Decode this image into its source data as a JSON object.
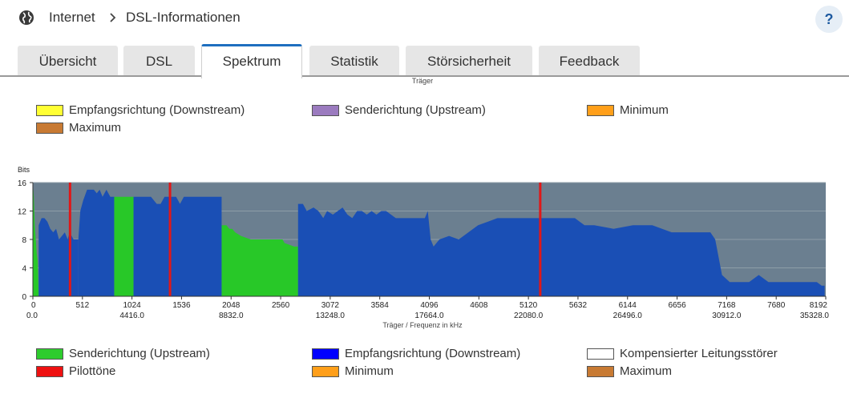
{
  "header": {
    "breadcrumb_root": "Internet",
    "breadcrumb_page": "DSL-Informationen",
    "help_label": "?"
  },
  "tabs": [
    {
      "label": "Übersicht",
      "active": false
    },
    {
      "label": "DSL",
      "active": false
    },
    {
      "label": "Spektrum",
      "active": true
    },
    {
      "label": "Statistik",
      "active": false
    },
    {
      "label": "Störsicherheit",
      "active": false
    },
    {
      "label": "Feedback",
      "active": false
    }
  ],
  "top_axis_label": "Träger",
  "legend_top": [
    {
      "label": "Empfangsrichtung (Downstream)",
      "color": "#ffff33"
    },
    {
      "label": "Senderichtung (Upstream)",
      "color": "#9b7bbf"
    },
    {
      "label": "Minimum",
      "color": "#ff9f1a"
    },
    {
      "label": "Maximum",
      "color": "#c87a33"
    }
  ],
  "legend_bottom": [
    {
      "label": "Senderichtung (Upstream)",
      "color": "#2ecc2e"
    },
    {
      "label": "Empfangsrichtung (Downstream)",
      "color": "#0000ff"
    },
    {
      "label": "Kompensierter Leitungsstörer",
      "color": "#ffffff"
    },
    {
      "label": "Pilottöne",
      "color": "#ee1111"
    },
    {
      "label": "Minimum",
      "color": "#ff9f1a"
    },
    {
      "label": "Maximum",
      "color": "#c87a33"
    }
  ],
  "chart_data": {
    "type": "area",
    "ylabel": "Bits",
    "xlabel": "Träger / Frequenz in kHz",
    "ylim": [
      0,
      16
    ],
    "xlim": [
      0,
      8192
    ],
    "grid": true,
    "y_ticks": [
      "0",
      "4",
      "8",
      "12",
      "16"
    ],
    "x_ticks": [
      "0",
      "512",
      "1024",
      "1536",
      "2048",
      "2560",
      "3072",
      "3584",
      "4096",
      "4608",
      "5120",
      "5632",
      "6144",
      "6656",
      "7168",
      "7680",
      "8192"
    ],
    "freq_ticks": [
      {
        "carrier": 0,
        "label": "0.0"
      },
      {
        "carrier": 1024,
        "label": "4416.0"
      },
      {
        "carrier": 2048,
        "label": "8832.0"
      },
      {
        "carrier": 3072,
        "label": "13248.0"
      },
      {
        "carrier": 4096,
        "label": "17664.0"
      },
      {
        "carrier": 5120,
        "label": "22080.0"
      },
      {
        "carrier": 6144,
        "label": "26496.0"
      },
      {
        "carrier": 7168,
        "label": "30912.0"
      },
      {
        "carrier": 8192,
        "label": "35328.0"
      }
    ],
    "colors": {
      "background": "#6b7f90",
      "downstream": "#1a4fb5",
      "upstream": "#28c828",
      "pilot": "#e01818",
      "grid": "#8e9ea8"
    },
    "series": [
      {
        "name": "Senderichtung (Upstream)",
        "bands": [
          {
            "x": [
              0,
              10,
              20,
              30,
              40,
              50,
              60
            ],
            "y": [
              16,
              14,
              10,
              8,
              6,
              5,
              0
            ]
          },
          {
            "x": [
              840,
              1040
            ],
            "y": [
              14,
              14
            ]
          },
          {
            "x": [
              1950,
              2000,
              2030,
              2060,
              2090,
              2150,
              2250,
              2350,
              2450,
              2580,
              2600,
              2700,
              2740
            ],
            "y": [
              10,
              10,
              9.5,
              9.5,
              9,
              8.5,
              8,
              8,
              8,
              8,
              7.5,
              7,
              7
            ]
          }
        ]
      },
      {
        "name": "Empfangsrichtung (Downstream)",
        "bands": [
          {
            "x": [
              60,
              90,
              120,
              150,
              180,
              210,
              240,
              270,
              300,
              330,
              360,
              380,
              400,
              420,
              450,
              470
            ],
            "y": [
              10,
              11,
              11,
              10.5,
              9.5,
              9,
              9.5,
              8,
              8.5,
              9,
              8,
              9,
              8.5,
              8,
              8,
              8
            ]
          },
          {
            "x": [
              470,
              490,
              520,
              560,
              600,
              630,
              660,
              690,
              720,
              760,
              780,
              800,
              820,
              840
            ],
            "y": [
              8,
              12,
              13.5,
              15,
              15,
              15,
              14.5,
              15,
              14,
              15,
              14.5,
              14,
              14,
              14
            ]
          },
          {
            "x": [
              1040,
              1100,
              1160,
              1220,
              1280,
              1320,
              1360,
              1390,
              1420,
              1450,
              1480,
              1520,
              1560,
              1600,
              1650,
              1700,
              1760,
              1800,
              1860,
              1900,
              1950
            ],
            "y": [
              14,
              14,
              14,
              14,
              13,
              13,
              14,
              14,
              14,
              14,
              14,
              13,
              14,
              14,
              14,
              14,
              14,
              14,
              14,
              14,
              14
            ]
          },
          {
            "x": [
              2740,
              2790,
              2830,
              2900,
              2950,
              3000,
              3040,
              3100,
              3150,
              3200,
              3250,
              3300,
              3350,
              3400,
              3450,
              3500,
              3550,
              3600,
              3650,
              3700,
              3750,
              3800,
              3850,
              3900,
              3950,
              4000,
              4050,
              4080,
              4110,
              4140,
              4200,
              4300,
              4400,
              4500,
              4600,
              4700,
              4800,
              4900,
              5000,
              5100,
              5200,
              5300,
              5400,
              5500,
              5600,
              5650,
              5700,
              5800,
              6000,
              6200,
              6400,
              6600,
              6800,
              7000,
              7050,
              7120,
              7200,
              7300,
              7400,
              7500,
              7600,
              7700,
              7800,
              7900,
              8000,
              8100,
              8150,
              8180
            ],
            "y": [
              13,
              13,
              12,
              12.5,
              12,
              11,
              12,
              11.5,
              12,
              12.5,
              11.5,
              11,
              12,
              12,
              11.5,
              12,
              11.5,
              12,
              12,
              11.5,
              11,
              11,
              11,
              11,
              11,
              11,
              11,
              12,
              8,
              7,
              8,
              8.5,
              8,
              9,
              10,
              10.5,
              11,
              11,
              11,
              11,
              11,
              11,
              11,
              11,
              11,
              10.5,
              10,
              10,
              9.5,
              10,
              10,
              9,
              9,
              9,
              8,
              3,
              2,
              2,
              2,
              3,
              2,
              2,
              2,
              2,
              2,
              2,
              1.5,
              1.5
            ]
          }
        ]
      }
    ],
    "pilot_tones": [
      384,
      1417,
      5242
    ]
  }
}
